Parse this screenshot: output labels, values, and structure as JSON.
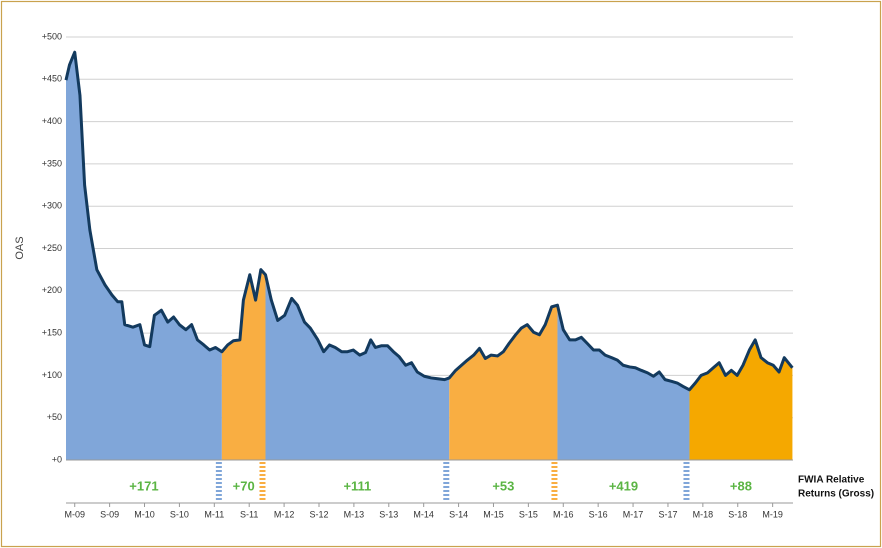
{
  "chart_data": {
    "type": "area",
    "y_axis_title": "OAS",
    "xlim": [
      -1.5,
      123.5
    ],
    "ylim": [
      0,
      500
    ],
    "yticks": [
      {
        "value": 0,
        "label": "+0"
      },
      {
        "value": 50,
        "label": "+50"
      },
      {
        "value": 100,
        "label": "+100"
      },
      {
        "value": 150,
        "label": "+150"
      },
      {
        "value": 200,
        "label": "+200"
      },
      {
        "value": 250,
        "label": "+250"
      },
      {
        "value": 300,
        "label": "+300"
      },
      {
        "value": 350,
        "label": "+350"
      },
      {
        "value": 400,
        "label": "+400"
      },
      {
        "value": 450,
        "label": "+450"
      },
      {
        "value": 500,
        "label": "+500"
      }
    ],
    "xticks": [
      {
        "value": 0,
        "label": "M-09"
      },
      {
        "value": 6,
        "label": "S-09"
      },
      {
        "value": 12,
        "label": "M-10"
      },
      {
        "value": 18,
        "label": "S-10"
      },
      {
        "value": 24,
        "label": "M-11"
      },
      {
        "value": 30,
        "label": "S-11"
      },
      {
        "value": 36,
        "label": "M-12"
      },
      {
        "value": 42,
        "label": "S-12"
      },
      {
        "value": 48,
        "label": "M-13"
      },
      {
        "value": 54,
        "label": "S-13"
      },
      {
        "value": 60,
        "label": "M-14"
      },
      {
        "value": 66,
        "label": "S-14"
      },
      {
        "value": 72,
        "label": "M-15"
      },
      {
        "value": 78,
        "label": "S-15"
      },
      {
        "value": 84,
        "label": "M-16"
      },
      {
        "value": 90,
        "label": "S-16"
      },
      {
        "value": 96,
        "label": "M-17"
      },
      {
        "value": 102,
        "label": "S-17"
      },
      {
        "value": 108,
        "label": "M-18"
      },
      {
        "value": 114,
        "label": "S-18"
      },
      {
        "value": 120,
        "label": "M-19"
      }
    ],
    "grid": true,
    "line_color": "#133a5e",
    "x": [
      -1.5,
      -0.9,
      0,
      0.9,
      1.7,
      2.6,
      3.8,
      5.2,
      6.4,
      7.4,
      8.1,
      8.6,
      10.0,
      11.2,
      12.0,
      12.9,
      13.7,
      14.9,
      16.0,
      17.0,
      18.0,
      19.1,
      20.1,
      21.1,
      22.2,
      23.2,
      24.2,
      25.3,
      26.3,
      27.3,
      28.4,
      29.0,
      30.1,
      31.1,
      32.0,
      32.8,
      33.8,
      34.9,
      36.1,
      37.3,
      38.3,
      39.5,
      40.5,
      41.8,
      42.8,
      43.8,
      44.8,
      45.9,
      46.9,
      47.9,
      49.0,
      50.0,
      50.9,
      51.7,
      52.7,
      53.8,
      54.8,
      55.8,
      56.9,
      57.9,
      58.9,
      60.1,
      61.3,
      62.4,
      63.6,
      64.4,
      65.5,
      66.5,
      67.5,
      68.6,
      69.6,
      70.6,
      71.6,
      72.7,
      73.7,
      74.7,
      75.8,
      76.8,
      77.8,
      78.9,
      79.9,
      80.9,
      82.0,
      83.0,
      84.0,
      85.1,
      86.1,
      87.1,
      88.1,
      89.2,
      90.2,
      91.2,
      92.3,
      93.3,
      94.3,
      95.4,
      96.4,
      97.4,
      98.5,
      99.5,
      100.5,
      101.5,
      102.6,
      103.6,
      104.6,
      105.7,
      106.7,
      107.7,
      108.8,
      109.8,
      110.8,
      111.9,
      112.9,
      113.9,
      114.9,
      116.0,
      117.0,
      118.0,
      119.1,
      120.1,
      121.1,
      122.0,
      123.4
    ],
    "values": [
      449,
      467,
      482,
      431,
      325,
      272,
      225,
      207,
      195,
      187,
      187,
      160,
      157,
      160,
      136,
      134,
      171,
      177,
      163,
      169,
      160,
      154,
      160,
      142,
      136,
      130,
      133,
      128,
      136,
      141,
      142,
      189,
      219,
      189,
      225,
      219,
      189,
      165,
      171,
      191,
      183,
      163,
      156,
      142,
      128,
      136,
      133,
      128,
      128,
      130,
      124,
      127,
      142,
      133,
      135,
      135,
      128,
      122,
      112,
      115,
      104,
      99,
      97,
      96,
      95,
      97,
      106,
      112,
      118,
      124,
      132,
      120,
      124,
      123,
      128,
      138,
      148,
      156,
      160,
      151,
      148,
      160,
      181,
      183,
      154,
      142,
      142,
      145,
      138,
      130,
      130,
      124,
      121,
      118,
      112,
      110,
      109,
      106,
      103,
      99,
      104,
      95,
      93,
      91,
      87,
      83,
      91,
      100,
      103,
      109,
      115,
      100,
      106,
      100,
      112,
      130,
      142,
      121,
      115,
      112,
      104,
      121,
      109
    ],
    "regions": [
      {
        "from": -1.5,
        "to": 25.3,
        "color": "#80a6d9",
        "label": "+171"
      },
      {
        "from": 25.3,
        "to": 32.8,
        "color": "#f9ae42",
        "label": "+70"
      },
      {
        "from": 32.8,
        "to": 64.4,
        "color": "#80a6d9",
        "label": "+111"
      },
      {
        "from": 64.4,
        "to": 83.0,
        "color": "#f9ae42",
        "label": "+53"
      },
      {
        "from": 83.0,
        "to": 105.7,
        "color": "#80a6d9",
        "label": "+419"
      },
      {
        "from": 105.7,
        "to": 123.4,
        "color": "#f5a800",
        "label": "+88"
      }
    ],
    "returns_legend": [
      "FWIA Relative",
      "Returns (Gross)"
    ]
  }
}
